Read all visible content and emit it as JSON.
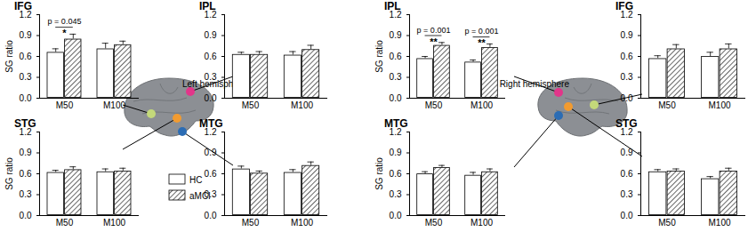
{
  "chart_data": [
    {
      "type": "bar",
      "title": "IFG",
      "y_label": "SG ratio",
      "categories": [
        "M50",
        "M100"
      ],
      "series": [
        {
          "name": "HC",
          "color": "#ffffff",
          "values": [
            0.66,
            0.71
          ],
          "errors": [
            0.05,
            0.08
          ]
        },
        {
          "name": "aMCI",
          "color": "#000000",
          "marker": "hatch",
          "values": [
            0.85,
            0.77
          ],
          "errors": [
            0.07,
            0.05
          ]
        }
      ],
      "ylim": [
        0,
        1.2
      ],
      "yticks": [
        0,
        0.3,
        0.6,
        0.9,
        1.2
      ],
      "annotations": [
        {
          "category": "M50",
          "label": "p = 0.045",
          "symbol": "*"
        }
      ]
    },
    {
      "type": "bar",
      "title": "IPL",
      "categories": [
        "M50",
        "M100"
      ],
      "series": [
        {
          "name": "HC",
          "color": "#ffffff",
          "values": [
            0.63,
            0.62
          ],
          "errors": [
            0.03,
            0.05
          ]
        },
        {
          "name": "aMCI",
          "color": "#000000",
          "marker": "hatch",
          "values": [
            0.63,
            0.7
          ],
          "errors": [
            0.04,
            0.06
          ]
        }
      ],
      "ylim": [
        0,
        1.2
      ],
      "yticks": [
        0,
        0.3,
        0.6,
        0.9,
        1.2
      ]
    },
    {
      "type": "bar",
      "title": "STG",
      "y_label": "SG ratio",
      "categories": [
        "M50",
        "M100"
      ],
      "series": [
        {
          "name": "HC",
          "color": "#ffffff",
          "values": [
            0.62,
            0.63
          ],
          "errors": [
            0.03,
            0.04
          ]
        },
        {
          "name": "aMCI",
          "color": "#000000",
          "marker": "hatch",
          "values": [
            0.66,
            0.64
          ],
          "errors": [
            0.04,
            0.04
          ]
        }
      ],
      "ylim": [
        0,
        1.2
      ],
      "yticks": [
        0,
        0.3,
        0.6,
        0.9,
        1.2
      ]
    },
    {
      "type": "bar",
      "title": "MTG",
      "categories": [
        "M50",
        "M100"
      ],
      "series": [
        {
          "name": "HC",
          "color": "#ffffff",
          "values": [
            0.67,
            0.62
          ],
          "errors": [
            0.04,
            0.04
          ]
        },
        {
          "name": "aMCI",
          "color": "#000000",
          "marker": "hatch",
          "values": [
            0.61,
            0.72
          ],
          "errors": [
            0.03,
            0.05
          ]
        }
      ],
      "ylim": [
        0,
        1.2
      ],
      "yticks": [
        0,
        0.3,
        0.6,
        0.9,
        1.2
      ]
    },
    {
      "type": "bar",
      "title": "IPL",
      "y_label": "SG ratio",
      "categories": [
        "M50",
        "M100"
      ],
      "series": [
        {
          "name": "HC",
          "color": "#ffffff",
          "values": [
            0.57,
            0.52
          ],
          "errors": [
            0.03,
            0.03
          ]
        },
        {
          "name": "aMCI",
          "color": "#000000",
          "marker": "hatch",
          "values": [
            0.76,
            0.73
          ],
          "errors": [
            0.04,
            0.05
          ]
        }
      ],
      "ylim": [
        0,
        1.2
      ],
      "yticks": [
        0,
        0.3,
        0.6,
        0.9,
        1.2
      ],
      "annotations": [
        {
          "category": "M50",
          "label": "p = 0.001",
          "symbol": "**"
        },
        {
          "category": "M100",
          "label": "p = 0.001",
          "symbol": "**"
        }
      ]
    },
    {
      "type": "bar",
      "title": "IFG",
      "categories": [
        "M50",
        "M100"
      ],
      "series": [
        {
          "name": "HC",
          "color": "#ffffff",
          "values": [
            0.57,
            0.6
          ],
          "errors": [
            0.04,
            0.06
          ]
        },
        {
          "name": "aMCI",
          "color": "#000000",
          "marker": "hatch",
          "values": [
            0.71,
            0.71
          ],
          "errors": [
            0.06,
            0.07
          ]
        }
      ],
      "ylim": [
        0,
        1.2
      ],
      "yticks": [
        0,
        0.3,
        0.6,
        0.9,
        1.2
      ]
    },
    {
      "type": "bar",
      "title": "MTG",
      "y_label": "SG ratio",
      "categories": [
        "M50",
        "M100"
      ],
      "series": [
        {
          "name": "HC",
          "color": "#ffffff",
          "values": [
            0.6,
            0.58
          ],
          "errors": [
            0.03,
            0.04
          ]
        },
        {
          "name": "aMCI",
          "color": "#000000",
          "marker": "hatch",
          "values": [
            0.69,
            0.63
          ],
          "errors": [
            0.03,
            0.04
          ]
        }
      ],
      "ylim": [
        0,
        1.2
      ],
      "yticks": [
        0,
        0.3,
        0.6,
        0.9,
        1.2
      ]
    },
    {
      "type": "bar",
      "title": "STG",
      "categories": [
        "M50",
        "M100"
      ],
      "series": [
        {
          "name": "HC",
          "color": "#ffffff",
          "values": [
            0.63,
            0.53
          ],
          "errors": [
            0.03,
            0.03
          ]
        },
        {
          "name": "aMCI",
          "color": "#000000",
          "marker": "hatch",
          "values": [
            0.64,
            0.64
          ],
          "errors": [
            0.03,
            0.04
          ]
        }
      ],
      "ylim": [
        0,
        1.2
      ],
      "yticks": [
        0,
        0.3,
        0.6,
        0.9,
        1.2
      ]
    }
  ],
  "hemisphere_labels": [
    "Left hemisphere",
    "Right hemisphere"
  ]
}
